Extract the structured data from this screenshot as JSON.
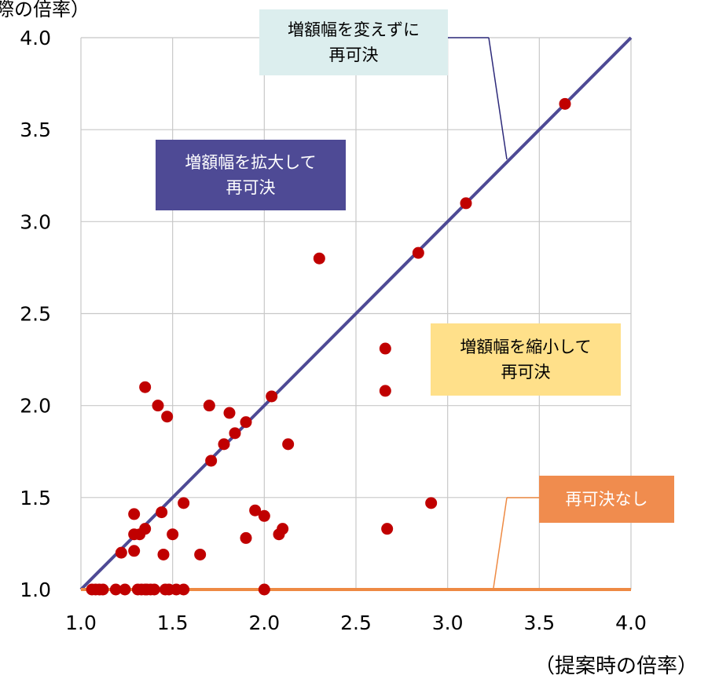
{
  "chart_data": {
    "type": "scatter",
    "ylabel": "際の倍率）",
    "xlabel": "（提案時の倍率）",
    "xlim": [
      1.0,
      4.0
    ],
    "ylim": [
      1.0,
      4.0
    ],
    "xticks": [
      "1.0",
      "1.5",
      "2.0",
      "2.5",
      "3.0",
      "3.5",
      "4.0"
    ],
    "yticks": [
      "1.0",
      "1.5",
      "2.0",
      "2.5",
      "3.0",
      "3.5",
      "4.0"
    ],
    "grid": true,
    "colors": {
      "points": "#c00000",
      "diagonal": "#4e4a95",
      "baseline": "#ee8a43",
      "grid": "#c8c8c8"
    },
    "annotations": {
      "same": {
        "line1": "増額幅を変えずに",
        "line2": "再可決",
        "color": "#dceeee"
      },
      "expand": {
        "line1": "増額幅を拡大して",
        "line2": "再可決",
        "color": "#4e4a95"
      },
      "shrink": {
        "line1": "増額幅を縮小して",
        "line2": "再可決",
        "color": "#ffe08a"
      },
      "none": {
        "line1": "再可決なし",
        "color": "#f08c4e"
      }
    },
    "points": [
      [
        1.06,
        1.0
      ],
      [
        1.08,
        1.0
      ],
      [
        1.1,
        1.0
      ],
      [
        1.12,
        1.0
      ],
      [
        1.19,
        1.0
      ],
      [
        1.24,
        1.0
      ],
      [
        1.31,
        1.0
      ],
      [
        1.33,
        1.0
      ],
      [
        1.35,
        1.0
      ],
      [
        1.36,
        1.0
      ],
      [
        1.38,
        1.0
      ],
      [
        1.4,
        1.0
      ],
      [
        1.46,
        1.0
      ],
      [
        1.48,
        1.0
      ],
      [
        1.52,
        1.0
      ],
      [
        1.56,
        1.0
      ],
      [
        2.0,
        1.0
      ],
      [
        1.22,
        1.2
      ],
      [
        1.29,
        1.21
      ],
      [
        1.29,
        1.3
      ],
      [
        1.32,
        1.3
      ],
      [
        1.29,
        1.41
      ],
      [
        1.35,
        1.33
      ],
      [
        1.44,
        1.42
      ],
      [
        1.45,
        1.19
      ],
      [
        1.5,
        1.3
      ],
      [
        1.56,
        1.47
      ],
      [
        1.65,
        1.19
      ],
      [
        1.71,
        1.7
      ],
      [
        1.78,
        1.79
      ],
      [
        1.84,
        1.85
      ],
      [
        1.9,
        1.91
      ],
      [
        2.04,
        2.05
      ],
      [
        1.35,
        2.1
      ],
      [
        1.42,
        2.0
      ],
      [
        1.47,
        1.94
      ],
      [
        1.7,
        2.0
      ],
      [
        1.81,
        1.96
      ],
      [
        1.9,
        1.28
      ],
      [
        1.95,
        1.43
      ],
      [
        2.0,
        1.4
      ],
      [
        2.08,
        1.3
      ],
      [
        2.1,
        1.33
      ],
      [
        2.13,
        1.79
      ],
      [
        2.3,
        2.8
      ],
      [
        2.66,
        2.31
      ],
      [
        2.66,
        2.08
      ],
      [
        2.67,
        1.33
      ],
      [
        2.84,
        2.83
      ],
      [
        2.91,
        1.47
      ],
      [
        3.1,
        3.1
      ],
      [
        3.64,
        3.64
      ]
    ]
  }
}
